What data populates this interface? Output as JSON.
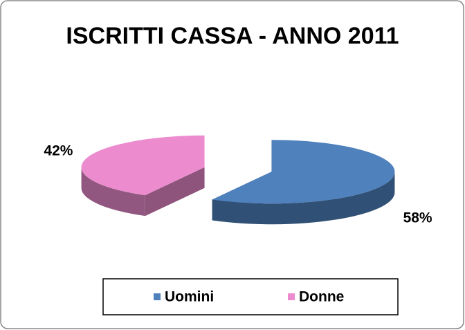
{
  "chart_data": {
    "type": "pie",
    "title": "ISCRITTI CASSA - ANNO 2011",
    "categories": [
      "Uomini",
      "Donne"
    ],
    "values": [
      58,
      42
    ],
    "value_labels": [
      "58%",
      "42%"
    ],
    "colors": [
      "#4f81bd",
      "#ec8ccf"
    ],
    "legend": "bottom"
  }
}
